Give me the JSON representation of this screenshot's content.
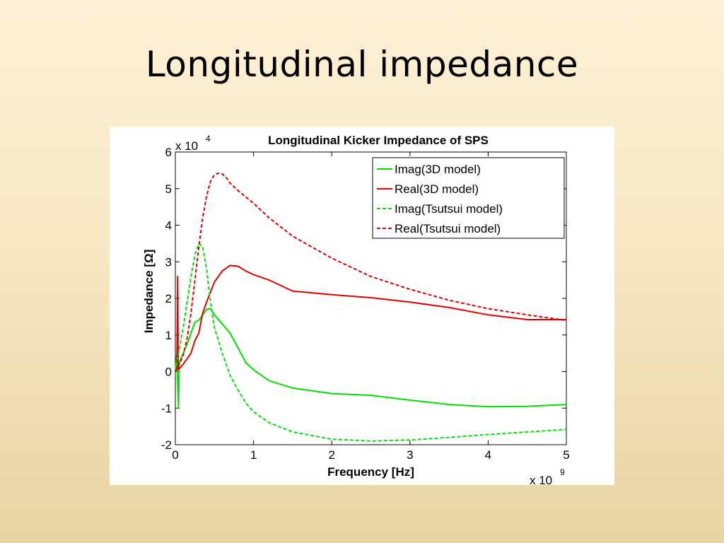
{
  "slide": {
    "title": "Longitudinal impedance"
  },
  "chart_data": {
    "type": "line",
    "title": "Longitudinal Kicker Impedance of SPS",
    "xlabel": "Frequency [Hz]",
    "ylabel": "Impedance [Ω]",
    "x_multiplier": {
      "base": "x 10",
      "exponent": "9"
    },
    "y_multiplier": {
      "base": "x 10",
      "exponent": "4"
    },
    "xlim": [
      0,
      5
    ],
    "ylim": [
      -2,
      6
    ],
    "xticks": [
      0,
      1,
      2,
      3,
      4,
      5
    ],
    "yticks": [
      -2,
      -1,
      0,
      1,
      2,
      3,
      4,
      5,
      6
    ],
    "xtick_labels": [
      "0",
      "1",
      "2",
      "3",
      "4",
      "5"
    ],
    "ytick_labels": [
      "-2",
      "-1",
      "0",
      "1",
      "2",
      "3",
      "4",
      "5",
      "6"
    ],
    "grid": false,
    "legend_position": "top-right",
    "colors": {
      "green": "#00e000",
      "red": "#e00000"
    },
    "series": [
      {
        "name": "Imag(3D model)",
        "color": "#00e000",
        "style": "solid",
        "x": [
          0,
          0.02,
          0.03,
          0.04,
          0.05,
          0.07,
          0.1,
          0.15,
          0.2,
          0.25,
          0.3,
          0.35,
          0.4,
          0.45,
          0.5,
          0.6,
          0.7,
          0.8,
          0.9,
          1.0,
          1.2,
          1.5,
          2.0,
          2.5,
          3.0,
          3.5,
          4.0,
          4.5,
          5.0
        ],
        "y": [
          0,
          0.5,
          -0.3,
          -1.0,
          0.2,
          0.35,
          0.5,
          0.75,
          1.05,
          1.35,
          1.4,
          1.55,
          1.7,
          1.72,
          1.55,
          1.3,
          1.05,
          0.65,
          0.25,
          0.05,
          -0.25,
          -0.45,
          -0.6,
          -0.65,
          -0.78,
          -0.9,
          -0.96,
          -0.95,
          -0.9
        ]
      },
      {
        "name": "Real(3D model)",
        "color": "#e00000",
        "style": "solid",
        "x": [
          0,
          0.02,
          0.03,
          0.035,
          0.04,
          0.06,
          0.1,
          0.15,
          0.2,
          0.25,
          0.3,
          0.35,
          0.4,
          0.5,
          0.6,
          0.7,
          0.8,
          0.9,
          1.0,
          1.2,
          1.5,
          2.0,
          2.5,
          3.0,
          3.5,
          4.0,
          4.5,
          5.0
        ],
        "y": [
          0,
          0.05,
          2.6,
          0.5,
          0.05,
          0.1,
          0.2,
          0.35,
          0.5,
          0.85,
          1.05,
          1.6,
          1.9,
          2.45,
          2.75,
          2.9,
          2.88,
          2.75,
          2.65,
          2.5,
          2.2,
          2.1,
          2.02,
          1.9,
          1.75,
          1.55,
          1.42,
          1.42
        ]
      },
      {
        "name": "Imag(Tsutsui model)",
        "color": "#00e000",
        "style": "dashed",
        "x": [
          0,
          0.05,
          0.1,
          0.15,
          0.2,
          0.25,
          0.3,
          0.35,
          0.4,
          0.45,
          0.5,
          0.6,
          0.7,
          0.8,
          0.9,
          1.0,
          1.2,
          1.5,
          2.0,
          2.5,
          3.0,
          3.5,
          4.0,
          4.5,
          5.0
        ],
        "y": [
          0,
          0.6,
          1.2,
          1.9,
          2.6,
          3.2,
          3.5,
          3.4,
          2.8,
          1.9,
          1.2,
          0.5,
          -0.1,
          -0.5,
          -0.85,
          -1.1,
          -1.4,
          -1.65,
          -1.85,
          -1.9,
          -1.87,
          -1.8,
          -1.72,
          -1.65,
          -1.58
        ]
      },
      {
        "name": "Real(Tsutsui model)",
        "color": "#e00000",
        "style": "dashed",
        "x": [
          0,
          0.05,
          0.1,
          0.15,
          0.2,
          0.25,
          0.3,
          0.35,
          0.4,
          0.45,
          0.5,
          0.55,
          0.6,
          0.65,
          0.7,
          0.8,
          1.0,
          1.2,
          1.5,
          2.0,
          2.5,
          3.0,
          3.5,
          4.0,
          4.5,
          5.0
        ],
        "y": [
          0,
          0.2,
          0.45,
          0.9,
          1.6,
          2.5,
          3.4,
          4.2,
          4.8,
          5.2,
          5.38,
          5.42,
          5.4,
          5.3,
          5.15,
          4.95,
          4.6,
          4.2,
          3.7,
          3.1,
          2.6,
          2.25,
          1.95,
          1.72,
          1.55,
          1.4
        ]
      }
    ]
  }
}
